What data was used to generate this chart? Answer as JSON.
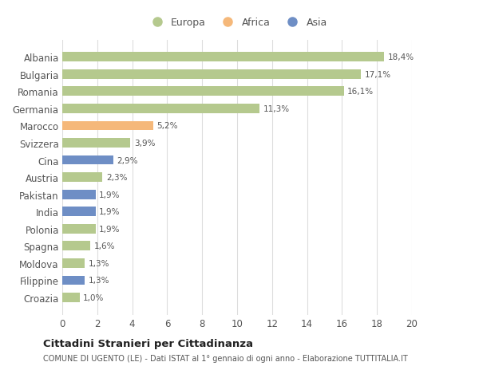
{
  "categories": [
    "Albania",
    "Bulgaria",
    "Romania",
    "Germania",
    "Marocco",
    "Svizzera",
    "Cina",
    "Austria",
    "Pakistan",
    "India",
    "Polonia",
    "Spagna",
    "Moldova",
    "Filippine",
    "Croazia"
  ],
  "values": [
    18.4,
    17.1,
    16.1,
    11.3,
    5.2,
    3.9,
    2.9,
    2.3,
    1.9,
    1.9,
    1.9,
    1.6,
    1.3,
    1.3,
    1.0
  ],
  "labels": [
    "18,4%",
    "17,1%",
    "16,1%",
    "11,3%",
    "5,2%",
    "3,9%",
    "2,9%",
    "2,3%",
    "1,9%",
    "1,9%",
    "1,9%",
    "1,6%",
    "1,3%",
    "1,3%",
    "1,0%"
  ],
  "continents": [
    "Europa",
    "Europa",
    "Europa",
    "Europa",
    "Africa",
    "Europa",
    "Asia",
    "Europa",
    "Asia",
    "Asia",
    "Europa",
    "Europa",
    "Europa",
    "Asia",
    "Europa"
  ],
  "colors": {
    "Europa": "#b5c98e",
    "Africa": "#f5b87a",
    "Asia": "#6e8ec5"
  },
  "xlim": [
    0,
    20
  ],
  "xticks": [
    0,
    2,
    4,
    6,
    8,
    10,
    12,
    14,
    16,
    18,
    20
  ],
  "title": "Cittadini Stranieri per Cittadinanza",
  "subtitle": "COMUNE DI UGENTO (LE) - Dati ISTAT al 1° gennaio di ogni anno - Elaborazione TUTTITALIA.IT",
  "background_color": "#ffffff",
  "grid_color": "#dddddd",
  "bar_height": 0.55,
  "legend_order": [
    "Europa",
    "Africa",
    "Asia"
  ]
}
